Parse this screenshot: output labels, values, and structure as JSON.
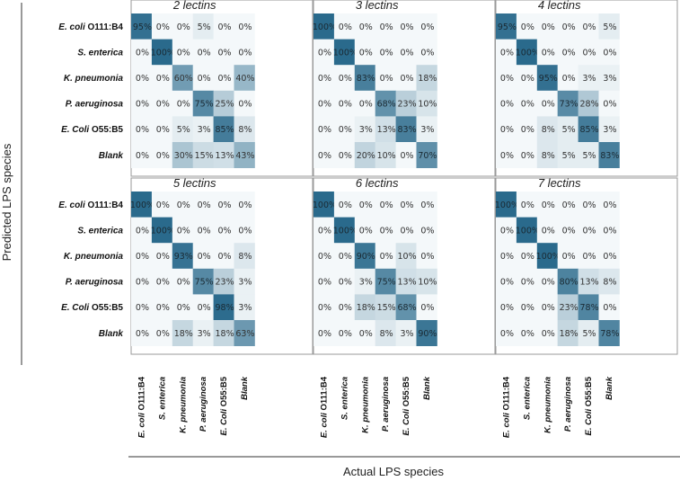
{
  "chart_data": {
    "type": "heatmap",
    "ylabel": "Predicted LPS species",
    "xlabel": "Actual LPS species",
    "color_min": "#f4f8fa",
    "color_max": "#2a6a8c",
    "row_labels": [
      {
        "italic": "E. coli",
        "plain": " O111:B4"
      },
      {
        "italic": "S. enterica",
        "plain": ""
      },
      {
        "italic": "K. pneumonia",
        "plain": ""
      },
      {
        "italic": "P. aeruginosa",
        "plain": ""
      },
      {
        "italic": "E. Coli",
        "plain": " O55:B5"
      },
      {
        "italic": "Blank",
        "plain": ""
      }
    ],
    "col_labels": [
      {
        "italic": "E. coli",
        "plain": " O111:B4"
      },
      {
        "italic": "S. enterica",
        "plain": ""
      },
      {
        "italic": "K. pneumonia",
        "plain": ""
      },
      {
        "italic": "P. aeruginosa",
        "plain": ""
      },
      {
        "italic": "E. Coli",
        "plain": " O55:B5"
      },
      {
        "italic": "Blank",
        "plain": ""
      }
    ],
    "panels": [
      {
        "title": "2 lectins",
        "values": [
          [
            95,
            0,
            0,
            5,
            0,
            0
          ],
          [
            0,
            100,
            0,
            0,
            0,
            0
          ],
          [
            0,
            0,
            60,
            0,
            0,
            40
          ],
          [
            0,
            0,
            0,
            75,
            25,
            0
          ],
          [
            0,
            0,
            5,
            3,
            85,
            8
          ],
          [
            0,
            0,
            30,
            15,
            13,
            43
          ]
        ]
      },
      {
        "title": "3 lectins",
        "values": [
          [
            100,
            0,
            0,
            0,
            0,
            0
          ],
          [
            0,
            100,
            0,
            0,
            0,
            0
          ],
          [
            0,
            0,
            83,
            0,
            0,
            18
          ],
          [
            0,
            0,
            0,
            68,
            23,
            10
          ],
          [
            0,
            0,
            3,
            13,
            83,
            3
          ],
          [
            0,
            0,
            20,
            10,
            0,
            70
          ]
        ]
      },
      {
        "title": "4 lectins",
        "values": [
          [
            95,
            0,
            0,
            0,
            0,
            5
          ],
          [
            0,
            100,
            0,
            0,
            0,
            0
          ],
          [
            0,
            0,
            95,
            0,
            3,
            3
          ],
          [
            0,
            0,
            0,
            73,
            28,
            0
          ],
          [
            0,
            0,
            8,
            5,
            85,
            3
          ],
          [
            0,
            0,
            8,
            5,
            5,
            83
          ]
        ]
      },
      {
        "title": "5 lectins",
        "values": [
          [
            100,
            0,
            0,
            0,
            0,
            0
          ],
          [
            0,
            100,
            0,
            0,
            0,
            0
          ],
          [
            0,
            0,
            93,
            0,
            0,
            8
          ],
          [
            0,
            0,
            0,
            75,
            23,
            3
          ],
          [
            0,
            0,
            0,
            0,
            98,
            3
          ],
          [
            0,
            0,
            18,
            3,
            18,
            63
          ]
        ]
      },
      {
        "title": "6 lectins",
        "values": [
          [
            100,
            0,
            0,
            0,
            0,
            0
          ],
          [
            0,
            100,
            0,
            0,
            0,
            0
          ],
          [
            0,
            0,
            90,
            0,
            10,
            0
          ],
          [
            0,
            0,
            3,
            75,
            13,
            10
          ],
          [
            0,
            0,
            18,
            15,
            68,
            0
          ],
          [
            0,
            0,
            0,
            8,
            3,
            90
          ]
        ]
      },
      {
        "title": "7 lectins",
        "values": [
          [
            100,
            0,
            0,
            0,
            0,
            0
          ],
          [
            0,
            100,
            0,
            0,
            0,
            0
          ],
          [
            0,
            0,
            100,
            0,
            0,
            0
          ],
          [
            0,
            0,
            0,
            80,
            13,
            8
          ],
          [
            0,
            0,
            0,
            23,
            78,
            0
          ],
          [
            0,
            0,
            0,
            18,
            5,
            78
          ]
        ]
      }
    ]
  }
}
